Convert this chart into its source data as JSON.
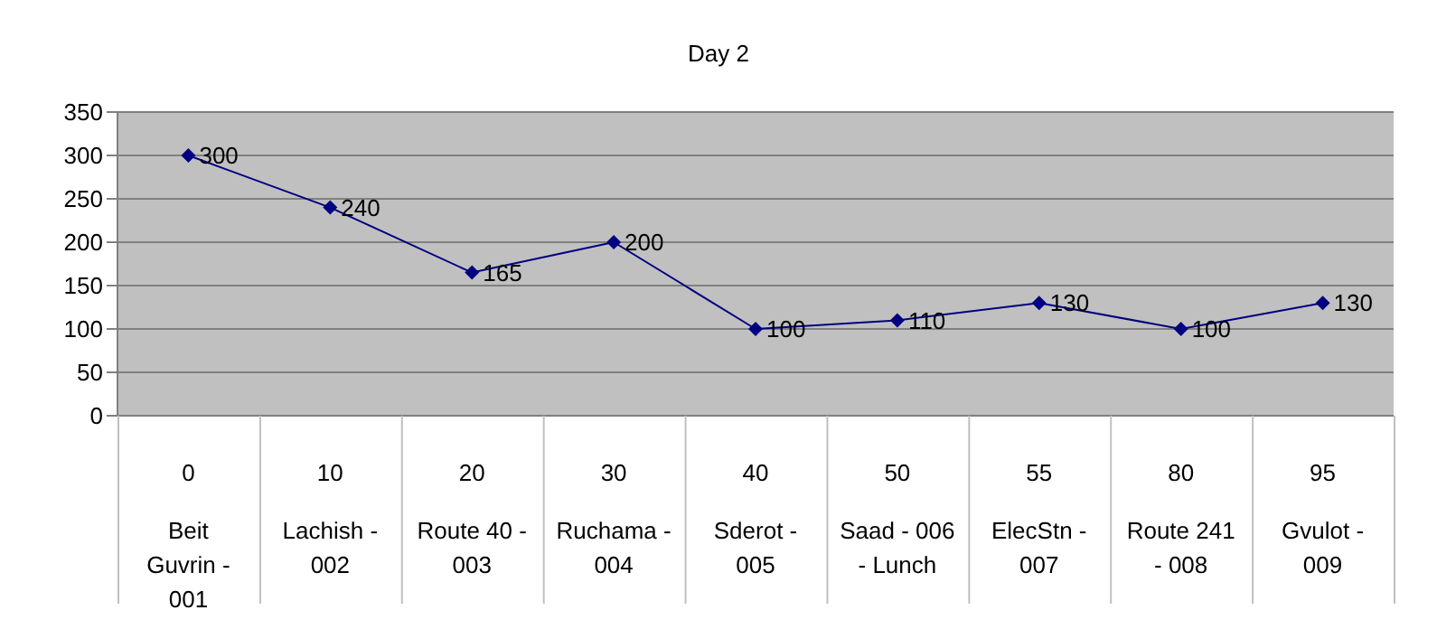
{
  "chart_data": {
    "type": "line",
    "title": "Day 2",
    "categories": [
      "0\nBeit Guvrin - 001",
      "10\nLachish - 002",
      "20\nRoute 40 - 003",
      "30\nRuchama - 004",
      "40\nSderot - 005",
      "50\nSaad - 006 - Lunch",
      "55\nElecStn - 007",
      "80\nRoute 241 - 008",
      "95\nGvulot - 009"
    ],
    "series": [
      {
        "color": "#000080",
        "values": [
          300,
          240,
          165,
          200,
          100,
          110,
          130,
          100,
          130
        ]
      }
    ],
    "ylim": [
      0,
      350
    ],
    "yticks": [
      0,
      50,
      100,
      150,
      200,
      250,
      300,
      350
    ],
    "grid": "y",
    "legend": false,
    "marker": "diamond",
    "line_style": "solid",
    "data_labels": true
  }
}
